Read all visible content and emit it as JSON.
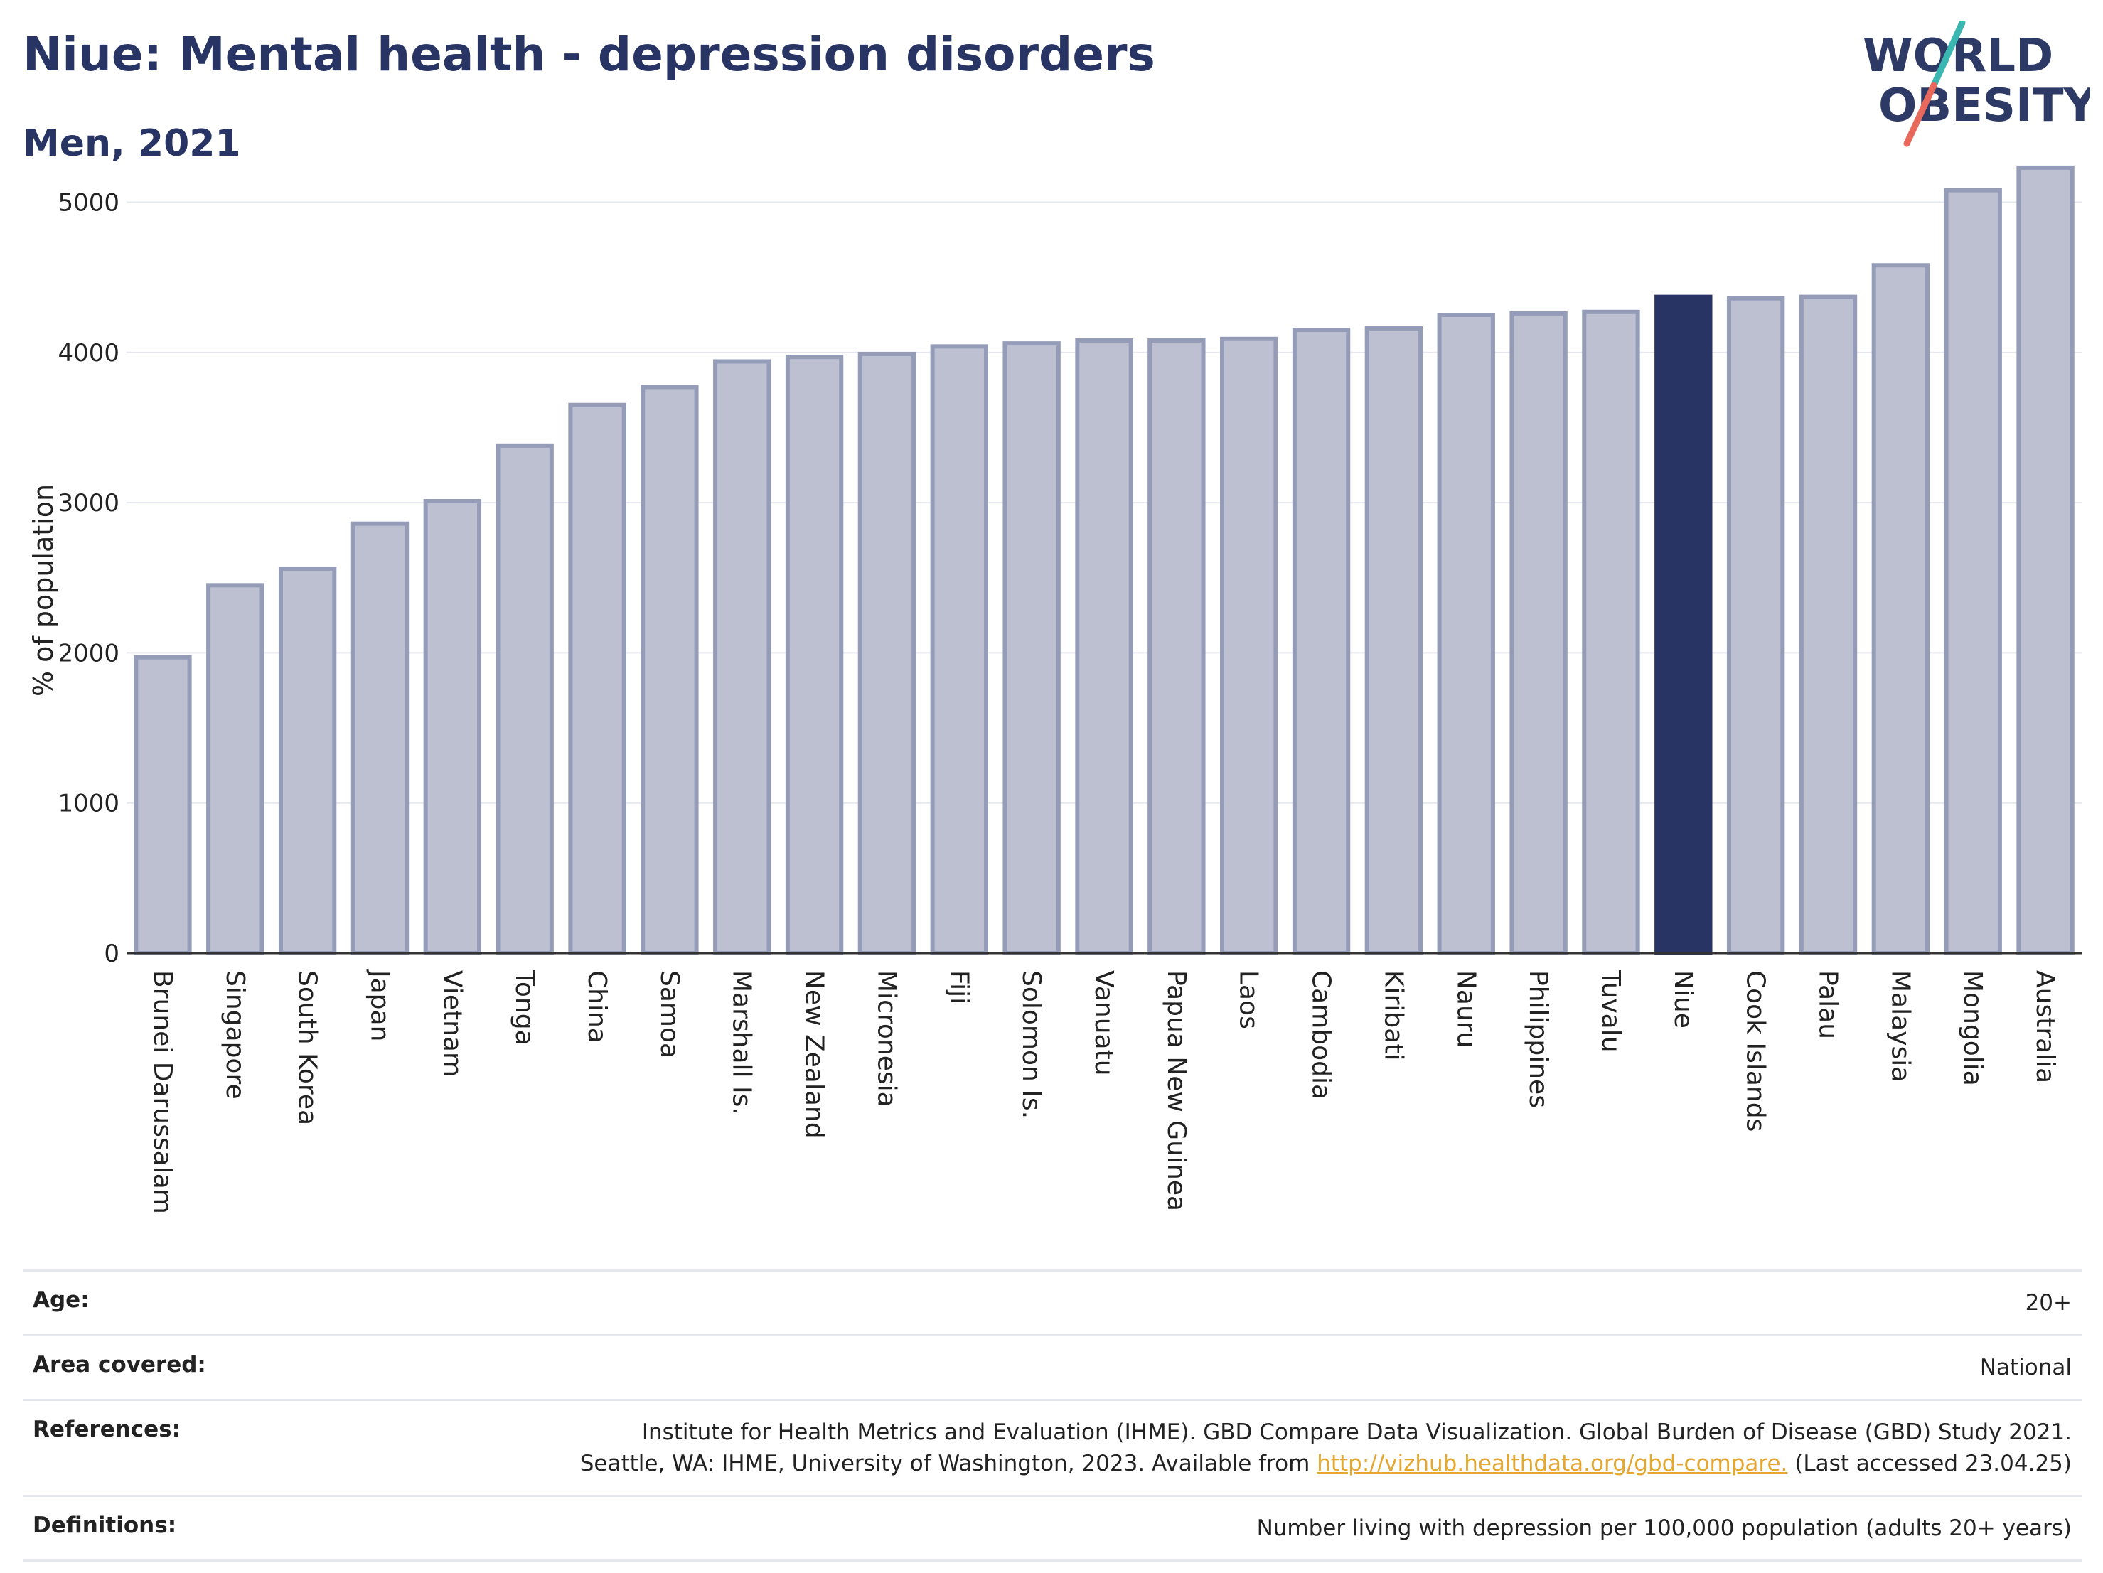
{
  "header": {
    "title": "Niue: Mental health - depression disorders",
    "subtitle": "Men, 2021"
  },
  "logo": {
    "line1": "WORLD",
    "line2": "OBESITY",
    "colors": {
      "text": "#2d3a66",
      "slash_top": "#3ab7b0",
      "slash_bottom": "#e8695b"
    }
  },
  "chart_data": {
    "type": "bar",
    "ylabel": "% of population",
    "xlabel": "",
    "ylim": [
      0,
      5400
    ],
    "yticks": [
      0,
      1000,
      2000,
      3000,
      4000,
      5000
    ],
    "grid": true,
    "highlight": "Niue",
    "colors": {
      "bar": "#bcc0d0",
      "bar_border": "#959cb8",
      "highlight": "#283564"
    },
    "categories": [
      "Brunei Darussalam",
      "Singapore",
      "South Korea",
      "Japan",
      "Vietnam",
      "Tonga",
      "China",
      "Samoa",
      "Marshall Is.",
      "New Zealand",
      "Micronesia",
      "Fiji",
      "Solomon Is.",
      "Vanuatu",
      "Papua New Guinea",
      "Laos",
      "Cambodia",
      "Kiribati",
      "Nauru",
      "Philippines",
      "Tuvalu",
      "Niue",
      "Cook Islands",
      "Palau",
      "Malaysia",
      "Mongolia",
      "Australia"
    ],
    "values": [
      1970,
      2450,
      2560,
      2860,
      3010,
      3380,
      3650,
      3770,
      3940,
      3970,
      3990,
      4040,
      4060,
      4080,
      4080,
      4090,
      4150,
      4160,
      4250,
      4260,
      4270,
      4370,
      4360,
      4370,
      4580,
      5080,
      5230
    ]
  },
  "metadata": {
    "rows": [
      {
        "label": "Age:",
        "value": "20+"
      },
      {
        "label": "Area covered:",
        "value": "National"
      },
      {
        "label": "References:",
        "value_line1": "Institute for Health Metrics and Evaluation (IHME). GBD Compare Data Visualization. Global Burden of Disease (GBD) Study 2021.",
        "value_line2_pre": "Seattle, WA: IHME, University of Washington, 2023. Available from ",
        "link": "http://vizhub.healthdata.org/gbd-compare.",
        "value_line2_post": " (Last accessed 23.04.25)"
      },
      {
        "label": "Definitions:",
        "value": "Number living with depression per 100,000 population (adults 20+ years)"
      }
    ]
  }
}
